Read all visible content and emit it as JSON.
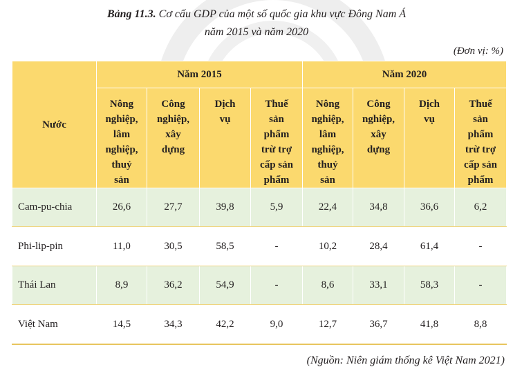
{
  "caption": {
    "label": "Bảng 11.3.",
    "title_line1": "Cơ cấu GDP của một số quốc gia khu vực Đông Nam Á",
    "title_line2": "năm 2015 và năm 2020"
  },
  "unit": "(Đơn vị: %)",
  "table": {
    "country_header": "Nước",
    "years": [
      "Năm 2015",
      "Năm 2020"
    ],
    "sub_headers": [
      [
        "Nông",
        "nghiệp,",
        "lâm",
        "nghiệp,",
        "thuỷ",
        "sản"
      ],
      [
        "Công",
        "nghiệp,",
        "xây",
        "dựng"
      ],
      [
        "Dịch",
        "vụ"
      ],
      [
        "Thuế",
        "sản",
        "phẩm",
        "trừ trợ",
        "cấp sản",
        "phẩm"
      ]
    ],
    "rows": [
      {
        "country": "Cam-pu-chia",
        "values": [
          "26,6",
          "27,7",
          "39,8",
          "5,9",
          "22,4",
          "34,8",
          "36,6",
          "6,2"
        ]
      },
      {
        "country": "Phi-lip-pin",
        "values": [
          "11,0",
          "30,5",
          "58,5",
          "-",
          "10,2",
          "28,4",
          "61,4",
          "-"
        ]
      },
      {
        "country": "Thái Lan",
        "values": [
          "8,9",
          "36,2",
          "54,9",
          "-",
          "8,6",
          "33,1",
          "58,3",
          "-"
        ]
      },
      {
        "country": "Việt Nam",
        "values": [
          "14,5",
          "34,3",
          "42,2",
          "9,0",
          "12,7",
          "36,7",
          "41,8",
          "8,8"
        ]
      }
    ]
  },
  "source": "(Nguồn: Niên giám thống kê Việt Nam 2021)"
}
